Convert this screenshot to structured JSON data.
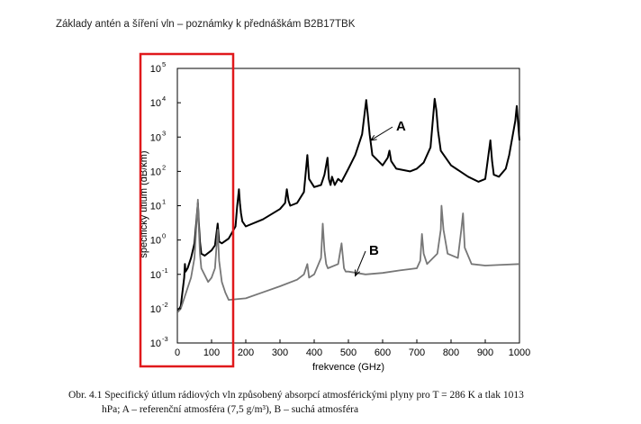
{
  "header": {
    "title": "Základy antén a šíření vln – poznámky k přednáškám B2B17TBK"
  },
  "caption": {
    "line1": "Obr. 4.1 Specifický útlum rádiových vln způsobený absorpcí atmosférickými plyny pro T = 286 K a tlak 1013",
    "line2": "hPa; A – referenční atmosféra (7,5 g/m³), B – suchá atmosféra"
  },
  "chart_data": {
    "type": "line",
    "xlabel": "frekvence (GHz)",
    "ylabel": "specifický útlum (dB/km)",
    "xlim": [
      0,
      1000
    ],
    "ylim": [
      0.001,
      100000
    ],
    "yscale": "log",
    "grid": true,
    "x_ticks": [
      "0",
      "100",
      "200",
      "300",
      "400",
      "500",
      "600",
      "700",
      "800",
      "900",
      "1000"
    ],
    "y_ticks": [
      {
        "base": "10",
        "exp": "-3"
      },
      {
        "base": "10",
        "exp": "-2"
      },
      {
        "base": "10",
        "exp": "-1"
      },
      {
        "base": "10",
        "exp": "0"
      },
      {
        "base": "10",
        "exp": "1"
      },
      {
        "base": "10",
        "exp": "2"
      },
      {
        "base": "10",
        "exp": "3"
      },
      {
        "base": "10",
        "exp": "4"
      },
      {
        "base": "10",
        "exp": "5"
      }
    ],
    "series": [
      {
        "name": "A",
        "color": "#000000",
        "x": [
          1,
          10,
          20,
          22,
          24,
          30,
          40,
          50,
          55,
          60,
          63,
          66,
          70,
          80,
          100,
          110,
          118,
          122,
          130,
          150,
          170,
          175,
          180,
          183,
          186,
          190,
          200,
          250,
          300,
          315,
          320,
          325,
          330,
          350,
          370,
          380,
          385,
          400,
          420,
          430,
          439,
          443,
          448,
          452,
          460,
          470,
          480,
          500,
          520,
          540,
          552,
          557,
          562,
          570,
          600,
          615,
          620,
          625,
          640,
          680,
          700,
          720,
          740,
          752,
          757,
          762,
          770,
          800,
          850,
          880,
          900,
          915,
          920,
          925,
          940,
          960,
          970,
          988,
          992,
          1000
        ],
        "y": [
          0.008,
          0.012,
          0.08,
          0.2,
          0.12,
          0.15,
          0.3,
          0.8,
          3,
          12,
          3,
          0.9,
          0.4,
          0.35,
          0.5,
          0.7,
          3,
          0.9,
          0.8,
          1.1,
          2.5,
          10,
          30,
          12,
          6,
          3.5,
          2.5,
          4,
          8,
          12,
          30,
          14,
          10,
          12,
          25,
          300,
          60,
          35,
          40,
          80,
          250,
          60,
          40,
          70,
          40,
          60,
          50,
          120,
          300,
          1200,
          12000,
          4000,
          1200,
          300,
          150,
          250,
          400,
          200,
          120,
          100,
          120,
          180,
          500,
          13000,
          6000,
          1500,
          400,
          150,
          70,
          50,
          60,
          800,
          200,
          80,
          70,
          120,
          300,
          3000,
          8000,
          800
        ]
      },
      {
        "name": "B",
        "color": "#777777",
        "x": [
          1,
          10,
          20,
          30,
          40,
          50,
          55,
          60,
          63,
          66,
          70,
          90,
          100,
          110,
          118,
          122,
          130,
          140,
          150,
          200,
          250,
          300,
          350,
          370,
          380,
          385,
          400,
          420,
          425,
          430,
          435,
          440,
          470,
          480,
          487,
          492,
          500,
          550,
          600,
          650,
          700,
          710,
          715,
          720,
          730,
          760,
          770,
          772,
          778,
          790,
          820,
          830,
          835,
          840,
          860,
          900,
          950,
          1000
        ],
        "y": [
          0.008,
          0.01,
          0.02,
          0.04,
          0.08,
          0.3,
          2,
          15,
          2,
          0.4,
          0.15,
          0.06,
          0.08,
          0.15,
          2,
          0.25,
          0.06,
          0.03,
          0.018,
          0.02,
          0.03,
          0.045,
          0.07,
          0.1,
          0.2,
          0.08,
          0.1,
          0.3,
          3,
          0.5,
          0.2,
          0.15,
          0.2,
          0.8,
          0.15,
          0.12,
          0.12,
          0.1,
          0.11,
          0.13,
          0.15,
          0.25,
          1.5,
          0.4,
          0.2,
          0.4,
          2,
          10,
          2,
          0.4,
          0.3,
          2,
          6,
          0.6,
          0.2,
          0.18,
          0.19,
          0.2
        ]
      }
    ]
  },
  "annotations": [
    {
      "label": "A",
      "arrow_to": {
        "x": 565,
        "y": 800
      }
    },
    {
      "label": "B",
      "arrow_to": {
        "x": 520,
        "y": 0.09
      }
    }
  ]
}
